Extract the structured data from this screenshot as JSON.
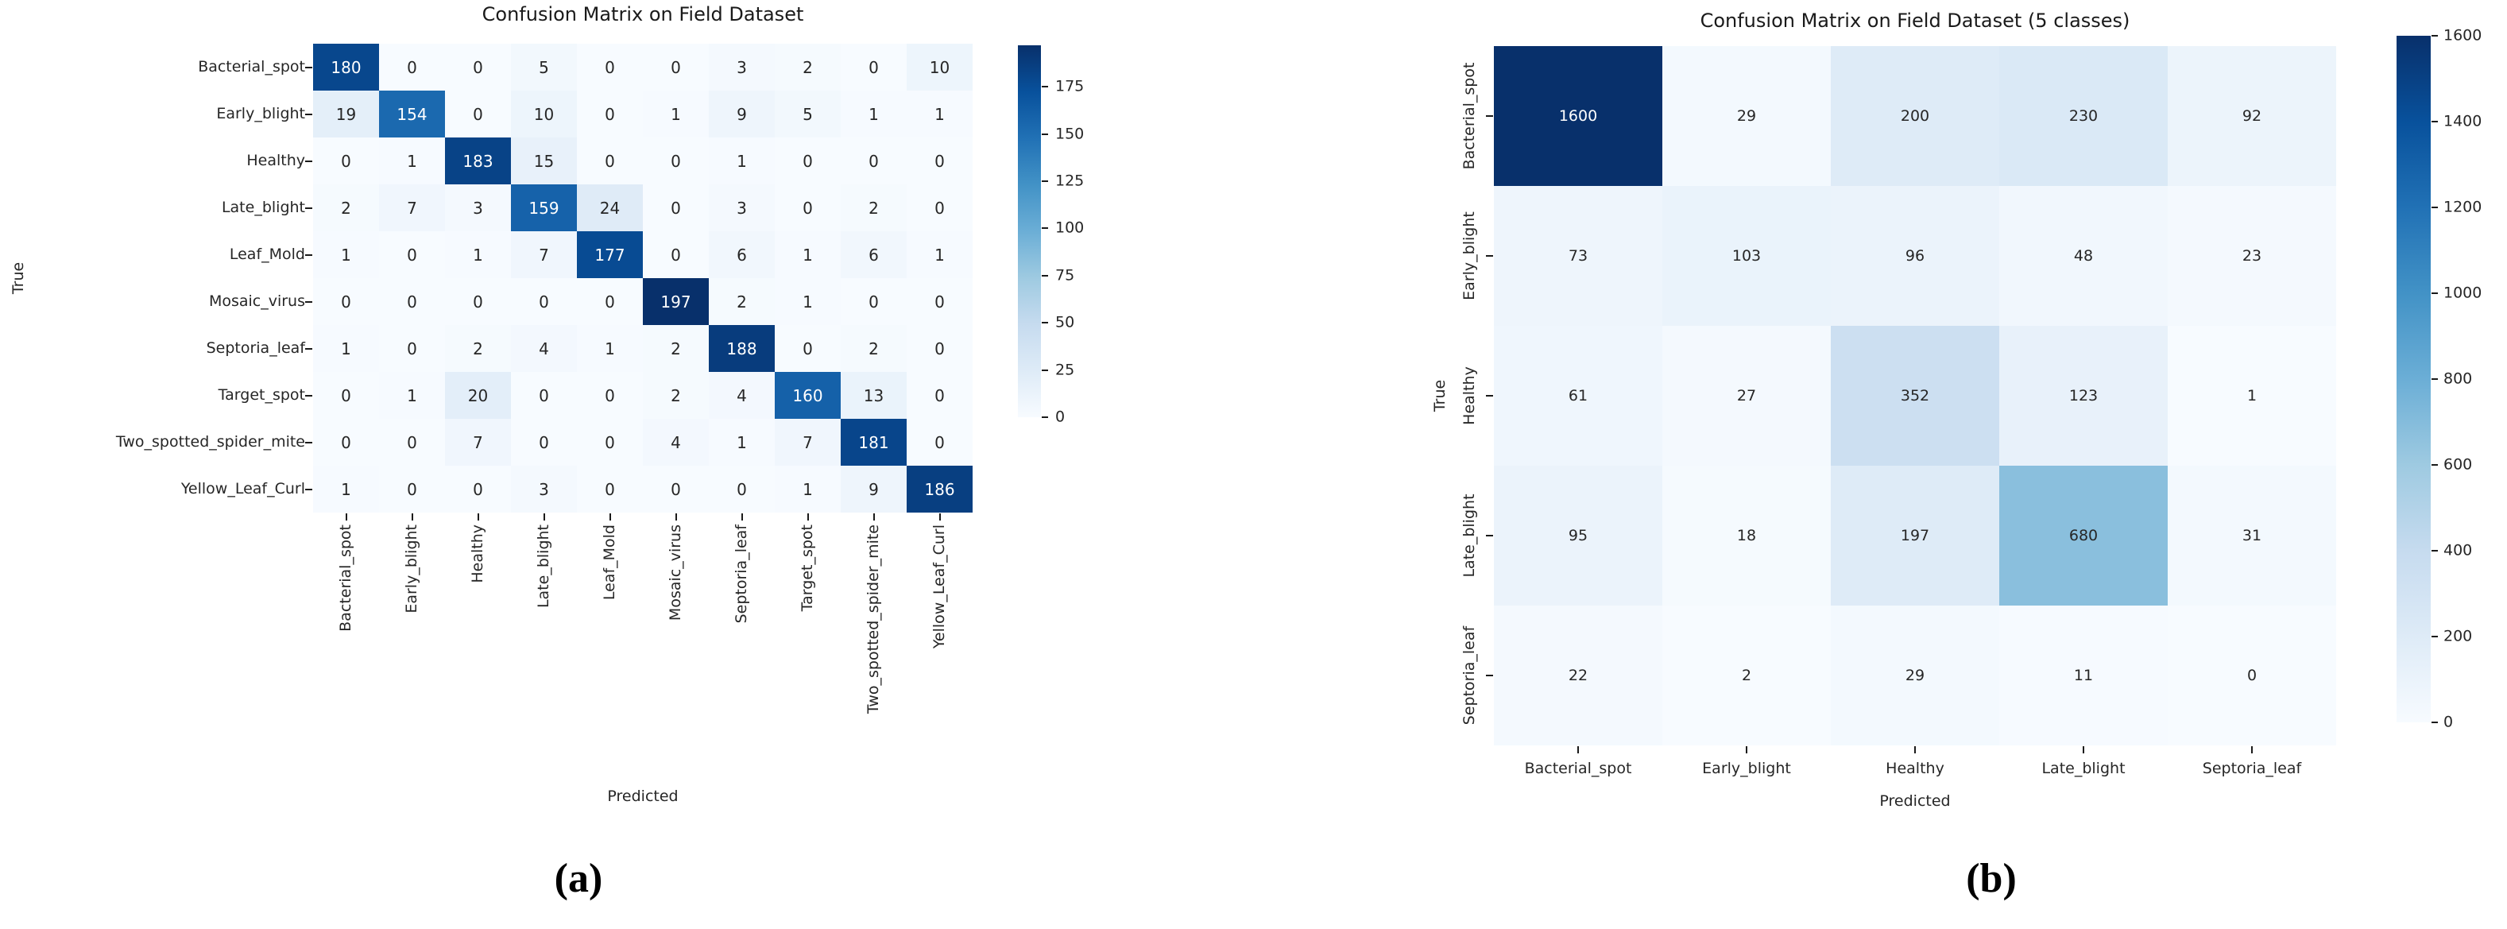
{
  "colors": {
    "background": "#ffffff",
    "annotation_dark": "#262626",
    "annotation_light": "#ffffff",
    "cmap_name": "Blues",
    "blues_scale": [
      "#f7fbff",
      "#deebf7",
      "#c6dbef",
      "#9ecae1",
      "#6baed6",
      "#4292c6",
      "#2171b5",
      "#08519c",
      "#08306b"
    ]
  },
  "captions": {
    "a": "(a)",
    "b": "(b)"
  },
  "chart_data": [
    {
      "type": "heatmap",
      "panel": "a",
      "title": "Confusion Matrix on Field Dataset",
      "xlabel": "Predicted",
      "ylabel": "True",
      "row_labels": [
        "Bacterial_spot",
        "Early_blight",
        "Healthy",
        "Late_blight",
        "Leaf_Mold",
        "Mosaic_virus",
        "Septoria_leaf",
        "Target_spot",
        "Two_spotted_spider_mite",
        "Yellow_Leaf_Curl"
      ],
      "col_labels": [
        "Bacterial_spot",
        "Early_blight",
        "Healthy",
        "Late_blight",
        "Leaf_Mold",
        "Mosaic_virus",
        "Septoria_leaf",
        "Target_spot",
        "Two_spotted_spider_mite",
        "Yellow_Leaf_Curl"
      ],
      "matrix": [
        [
          180,
          0,
          0,
          5,
          0,
          0,
          3,
          2,
          0,
          10
        ],
        [
          19,
          154,
          0,
          10,
          0,
          1,
          9,
          5,
          1,
          1
        ],
        [
          0,
          1,
          183,
          15,
          0,
          0,
          1,
          0,
          0,
          0
        ],
        [
          2,
          7,
          3,
          159,
          24,
          0,
          3,
          0,
          2,
          0
        ],
        [
          1,
          0,
          1,
          7,
          177,
          0,
          6,
          1,
          6,
          1
        ],
        [
          0,
          0,
          0,
          0,
          0,
          197,
          2,
          1,
          0,
          0
        ],
        [
          1,
          0,
          2,
          4,
          1,
          2,
          188,
          0,
          2,
          0
        ],
        [
          0,
          1,
          20,
          0,
          0,
          2,
          4,
          160,
          13,
          0
        ],
        [
          0,
          0,
          7,
          0,
          0,
          4,
          1,
          7,
          181,
          0
        ],
        [
          1,
          0,
          0,
          3,
          0,
          0,
          0,
          1,
          9,
          186
        ]
      ],
      "vmin": 0,
      "vmax": 197,
      "colormap": "Blues",
      "colorbar_ticks": [
        0,
        25,
        50,
        75,
        100,
        125,
        150,
        175
      ],
      "x_tick_rotation": 90,
      "y_tick_rotation": 0,
      "legend_position": "right-colorbar",
      "grid": "off",
      "caption": "(a)"
    },
    {
      "type": "heatmap",
      "panel": "b",
      "title": "Confusion Matrix on Field Dataset (5 classes)",
      "xlabel": "Predicted",
      "ylabel": "True",
      "row_labels": [
        "Bacterial_spot",
        "Early_blight",
        "Healthy",
        "Late_blight",
        "Septoria_leaf"
      ],
      "col_labels": [
        "Bacterial_spot",
        "Early_blight",
        "Healthy",
        "Late_blight",
        "Septoria_leaf"
      ],
      "matrix": [
        [
          1600,
          29,
          200,
          230,
          92
        ],
        [
          73,
          103,
          96,
          48,
          23
        ],
        [
          61,
          27,
          352,
          123,
          1
        ],
        [
          95,
          18,
          197,
          680,
          31
        ],
        [
          22,
          2,
          29,
          11,
          0
        ]
      ],
      "vmin": 0,
      "vmax": 1600,
      "colormap": "Blues",
      "colorbar_ticks": [
        0,
        200,
        400,
        600,
        800,
        1000,
        1200,
        1400,
        1600
      ],
      "x_tick_rotation": 0,
      "y_tick_rotation": 90,
      "legend_position": "right-colorbar",
      "grid": "off",
      "caption": "(b)"
    }
  ]
}
